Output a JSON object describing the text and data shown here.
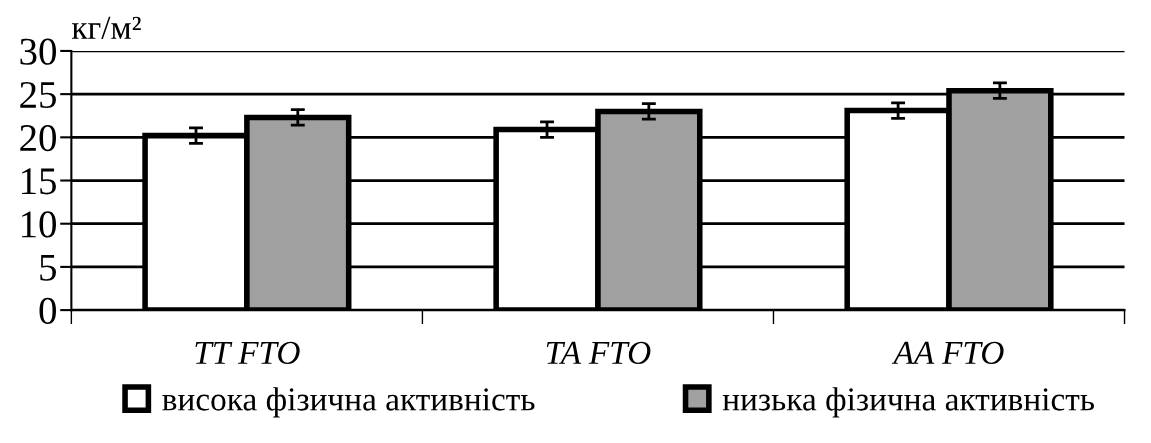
{
  "chart_data": {
    "type": "bar",
    "ylabel": "кг/м²",
    "categories": [
      "TT FTO",
      "TA FTO",
      "AA FTO"
    ],
    "series": [
      {
        "name": "висока фізична активність",
        "color": "#ffffff",
        "values": [
          20.2,
          20.9,
          23.1
        ],
        "errors": [
          0.9,
          0.9,
          0.9
        ]
      },
      {
        "name": "низька фізична активність",
        "color": "#a0a0a0",
        "values": [
          22.3,
          23.0,
          25.4
        ],
        "errors": [
          0.9,
          0.9,
          0.9
        ]
      }
    ],
    "ylim": [
      0,
      30
    ],
    "yticks": [
      0,
      5,
      10,
      15,
      20,
      25,
      30
    ],
    "grid": "y",
    "legend": "bottom"
  }
}
